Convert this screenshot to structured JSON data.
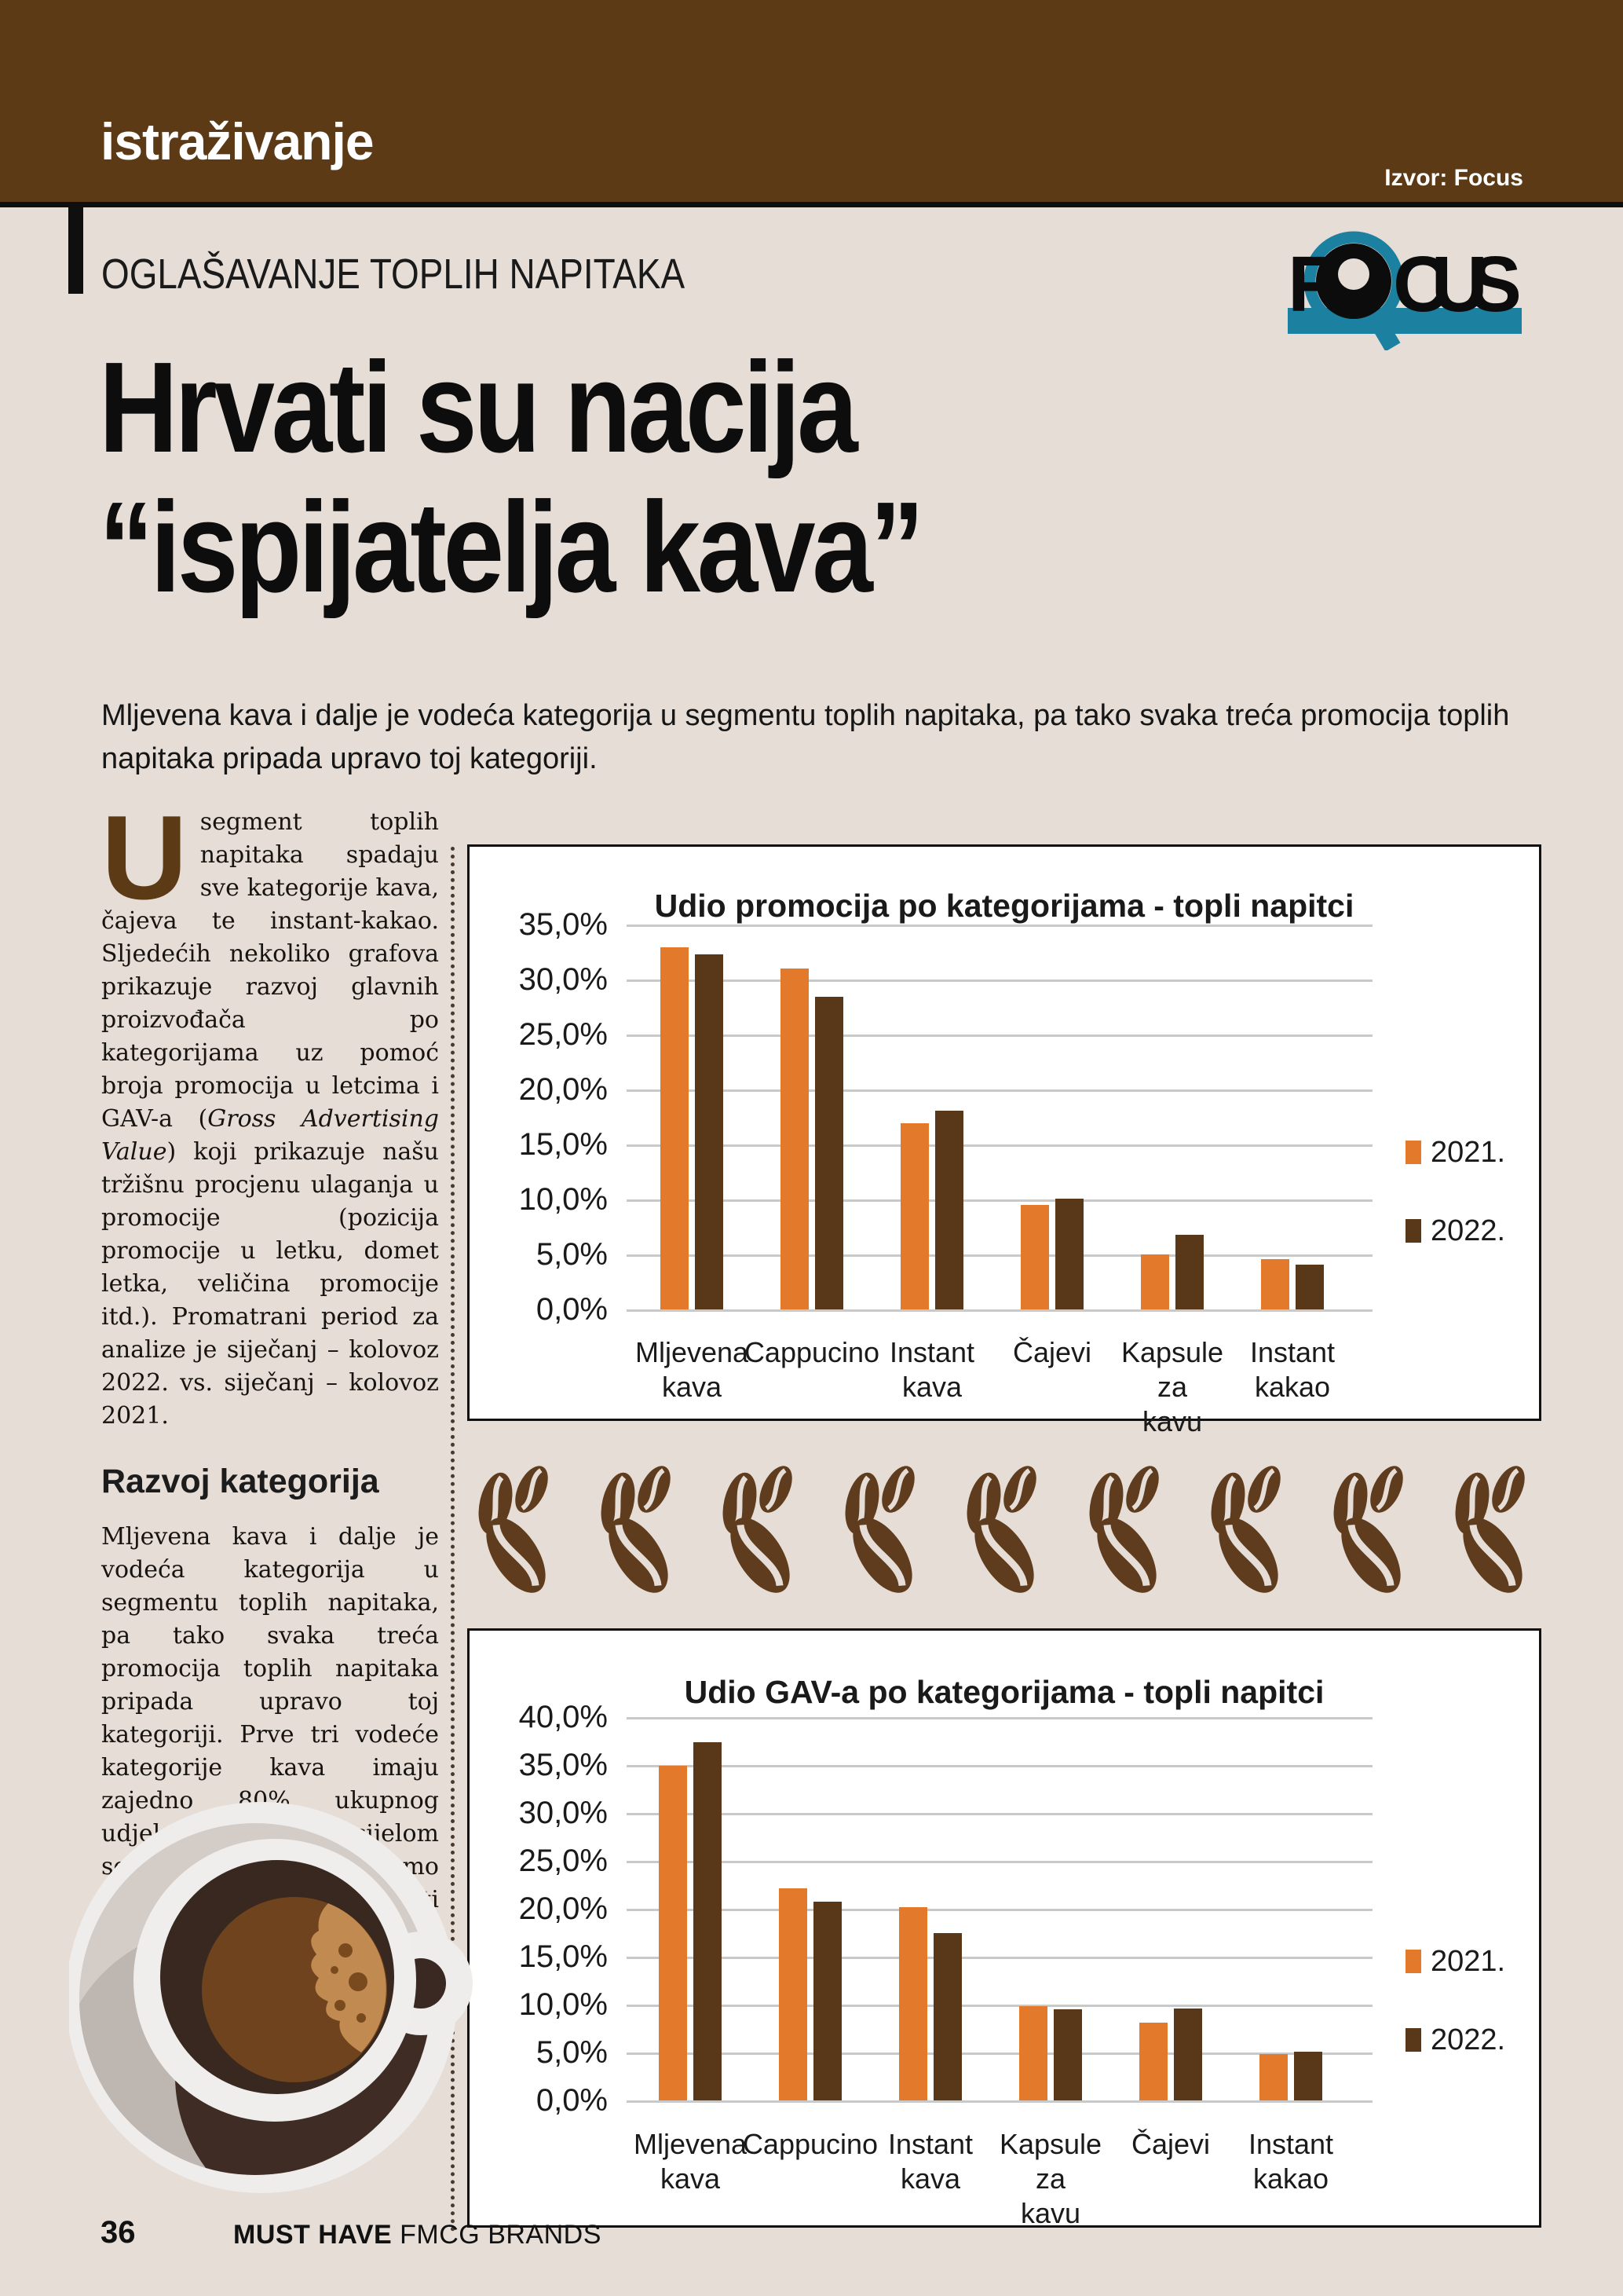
{
  "page": {
    "bg": "#E5DDD6",
    "footer_page": "36",
    "footer_bold": "MUST HAVE",
    "footer_rest": " FMCG BRANDS"
  },
  "header": {
    "bg": "#5B3A15",
    "section": "istraživanje",
    "source": "Izvor: Focus"
  },
  "kicker": "OGLAŠAVANJE TOPLIH NAPITAKA",
  "logo": {
    "f": "F",
    "cus": "CUS",
    "teal": "#1C81A1",
    "black": "#0c0c0c"
  },
  "title": {
    "line1": "Hrvati su nacija",
    "line2": "“ispijatelja kava”"
  },
  "lead": "Mljevena kava i dalje je vodeća kategorija u segmentu toplih napitaka, pa tako svaka treća promocija toplih napitaka pripada upravo toj kategoriji.",
  "article": {
    "dropcap": "U",
    "para1_pre": "segment toplih napitaka spadaju sve kategorije kava, čajeva te instant-kakao. Sljedećih nekoliko grafova prikazuje razvoj glavnih proizvođača po kategorijama uz pomoć broja promocija u letcima i GAV-a (",
    "para1_italic": "Gross Advertising Value",
    "para1_post": ") koji prikazuje našu tržišnu procjenu ulaganja u promocije (pozicija promocije u letku, domet letka, veličina promocije itd.). Promatrani period za analize je siječanj – kolovoz 2022. vs. siječanj – kolovoz 2021.",
    "heading": "Razvoj kategorija",
    "para2": "Mljevena kava i dalje je vodeća kategorija u segmentu toplih napitaka, pa tako svaka treća promocija toplih napitaka pripada upravo toj kategoriji. Prve tri vodeće kategorije kava imaju zajedno 80% ukupnog udjela promocija u cijelom segmentu, što je samo dodatni dokaz da su Hrvati nacija “ispijatelja kava”. Na čajeve otpada samo 10%"
  },
  "chart_data": [
    {
      "type": "bar",
      "title": "Udio promocija po kategorijama - topli napitci",
      "categories": [
        "Mljevena kava",
        "Cappucino",
        "Instant kava",
        "Čajevi",
        "Kapsule za kavu",
        "Instant kakao"
      ],
      "category_lines": [
        [
          "Mljevena",
          "kava"
        ],
        [
          "Cappucino"
        ],
        [
          "Instant kava"
        ],
        [
          "Čajevi"
        ],
        [
          "Kapsule za",
          "kavu"
        ],
        [
          "Instant",
          "kakao"
        ]
      ],
      "series": [
        {
          "name": "2021.",
          "color": "#E2792B",
          "values": [
            32.9,
            31.0,
            16.9,
            9.5,
            5.0,
            4.6
          ]
        },
        {
          "name": "2022.",
          "color": "#583818",
          "values": [
            32.3,
            28.4,
            18.1,
            10.1,
            6.8,
            4.1
          ]
        }
      ],
      "ylim": [
        0,
        35
      ],
      "ytick_step": 5,
      "yticks": [
        "0,0%",
        "5,0%",
        "10,0%",
        "15,0%",
        "20,0%",
        "25,0%",
        "30,0%",
        "35,0%"
      ],
      "grid": true,
      "legend_position": "right"
    },
    {
      "type": "bar",
      "title": "Udio GAV-a po kategorijama - topli napitci",
      "categories": [
        "Mljevena kava",
        "Cappucino",
        "Instant kava",
        "Kapsule za kavu",
        "Čajevi",
        "Instant kakao"
      ],
      "category_lines": [
        [
          "Mljevena",
          "kava"
        ],
        [
          "Cappucino"
        ],
        [
          "Instant kava"
        ],
        [
          "Kapsule za",
          "kavu"
        ],
        [
          "Čajevi"
        ],
        [
          "Instant",
          "kakao"
        ]
      ],
      "series": [
        {
          "name": "2021.",
          "color": "#E2792B",
          "values": [
            34.9,
            22.1,
            20.2,
            9.8,
            8.1,
            4.8
          ]
        },
        {
          "name": "2022.",
          "color": "#583818",
          "values": [
            37.4,
            20.7,
            17.5,
            9.5,
            9.6,
            5.1
          ]
        }
      ],
      "ylim": [
        0,
        40
      ],
      "ytick_step": 5,
      "yticks": [
        "0,0%",
        "5,0%",
        "10,0%",
        "15,0%",
        "20,0%",
        "25,0%",
        "30,0%",
        "35,0%",
        "40,0%"
      ],
      "grid": true,
      "legend_position": "right"
    }
  ],
  "decor": {
    "bean_count": 9,
    "bean_color": "#5E3C1D"
  }
}
